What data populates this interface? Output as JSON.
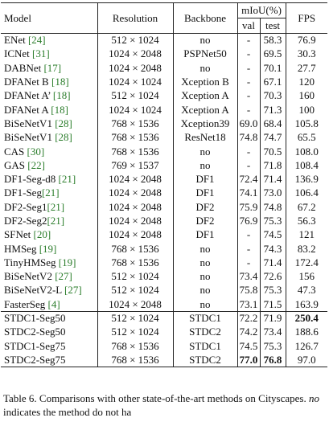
{
  "headers": {
    "model": "Model",
    "resolution": "Resolution",
    "backbone": "Backbone",
    "miou": "mIoU(%)",
    "val": "val",
    "test": "test",
    "fps": "FPS"
  },
  "groups": [
    [
      {
        "name": "ENet ",
        "cite": "[24]",
        "res": "512 × 1024",
        "backbone": "no",
        "val": "-",
        "test": "58.3",
        "fps": "76.9"
      },
      {
        "name": "ICNet ",
        "cite": "[31]",
        "res": "1024 × 2048",
        "backbone": "PSPNet50",
        "val": "-",
        "test": "69.5",
        "fps": "30.3"
      },
      {
        "name": "DABNet ",
        "cite": "[17]",
        "res": "1024 × 2048",
        "backbone": "no",
        "val": "-",
        "test": "70.1",
        "fps": "27.7"
      },
      {
        "name": "DFANet B ",
        "cite": "[18]",
        "res": "1024 × 1024",
        "backbone": "Xception B",
        "val": "-",
        "test": "67.1",
        "fps": "120"
      },
      {
        "name": "DFANet A’ ",
        "cite": "[18]",
        "res": "512 × 1024",
        "backbone": "Xception A",
        "val": "-",
        "test": "70.3",
        "fps": "160"
      },
      {
        "name": "DFANet A ",
        "cite": "[18]",
        "res": "1024 × 1024",
        "backbone": "Xception A",
        "val": "-",
        "test": "71.3",
        "fps": "100"
      },
      {
        "name": "BiSeNetV1 ",
        "cite": "[28]",
        "res": "768 × 1536",
        "backbone": "Xception39",
        "val": "69.0",
        "test": "68.4",
        "fps": "105.8"
      },
      {
        "name": "BiSeNetV1 ",
        "cite": "[28]",
        "res": "768 × 1536",
        "backbone": "ResNet18",
        "val": "74.8",
        "test": "74.7",
        "fps": "65.5"
      },
      {
        "name": "CAS ",
        "cite": "[30]",
        "res": "768 × 1536",
        "backbone": "no",
        "val": "-",
        "test": "70.5",
        "fps": "108.0"
      },
      {
        "name": "GAS ",
        "cite": "[22]",
        "res": "769 × 1537",
        "backbone": "no",
        "val": "-",
        "test": "71.8",
        "fps": "108.4"
      },
      {
        "name": "DF1-Seg-d8 ",
        "cite": "[21]",
        "res": "1024 × 2048",
        "backbone": "DF1",
        "val": "72.4",
        "test": "71.4",
        "fps": "136.9"
      },
      {
        "name": "DF1-Seg",
        "cite": "[21]",
        "res": "1024 × 2048",
        "backbone": "DF1",
        "val": "74.1",
        "test": "73.0",
        "fps": "106.4"
      },
      {
        "name": "DF2-Seg1",
        "cite": "[21]",
        "res": "1024 × 2048",
        "backbone": "DF2",
        "val": "75.9",
        "test": "74.8",
        "fps": "67.2"
      },
      {
        "name": "DF2-Seg2",
        "cite": "[21]",
        "res": "1024 × 2048",
        "backbone": "DF2",
        "val": "76.9",
        "test": "75.3",
        "fps": "56.3"
      },
      {
        "name": "SFNet ",
        "cite": "[20]",
        "res": "1024 × 2048",
        "backbone": "DF1",
        "val": "-",
        "test": "74.5",
        "fps": "121"
      },
      {
        "name": "HMSeg ",
        "cite": "[19]",
        "res": "768 × 1536",
        "backbone": "no",
        "val": "-",
        "test": "74.3",
        "fps": "83.2"
      },
      {
        "name": "TinyHMSeg ",
        "cite": "[19]",
        "res": "768 × 1536",
        "backbone": "no",
        "val": "-",
        "test": "71.4",
        "fps": "172.4"
      },
      {
        "name": "BiSeNetV2 ",
        "cite": "[27]",
        "res": "512 × 1024",
        "backbone": "no",
        "val": "73.4",
        "test": "72.6",
        "fps": "156"
      },
      {
        "name": "BiSeNetV2-L ",
        "cite": "[27]",
        "res": "512 × 1024",
        "backbone": "no",
        "val": "75.8",
        "test": "75.3",
        "fps": "47.3"
      },
      {
        "name": "FasterSeg ",
        "cite": "[4]",
        "res": "1024 × 2048",
        "backbone": "no",
        "val": "73.1",
        "test": "71.5",
        "fps": "163.9"
      }
    ],
    [
      {
        "name": "STDC1-Seg50",
        "cite": "",
        "res": "512 × 1024",
        "backbone": "STDC1",
        "val": "72.2",
        "test": "71.9",
        "fps": "250.4",
        "bold": [
          "fps"
        ]
      },
      {
        "name": "STDC2-Seg50",
        "cite": "",
        "res": "512 × 1024",
        "backbone": "STDC2",
        "val": "74.2",
        "test": "73.4",
        "fps": "188.6",
        "bold": []
      },
      {
        "name": "STDC1-Seg75",
        "cite": "",
        "res": "768 × 1536",
        "backbone": "STDC1",
        "val": "74.5",
        "test": "75.3",
        "fps": "126.7",
        "bold": []
      },
      {
        "name": "STDC2-Seg75",
        "cite": "",
        "res": "768 × 1536",
        "backbone": "STDC2",
        "val": "77.0",
        "test": "76.8",
        "fps": "97.0",
        "bold": [
          "val",
          "test"
        ]
      }
    ]
  ],
  "caption": {
    "part1": "Table 6. Comparisons with other state-of-the-art methods on Cityscapes. ",
    "no_word": "no",
    "part2": " indicates the method do not ha"
  },
  "colors": {
    "citation": "#2b7d2b"
  }
}
